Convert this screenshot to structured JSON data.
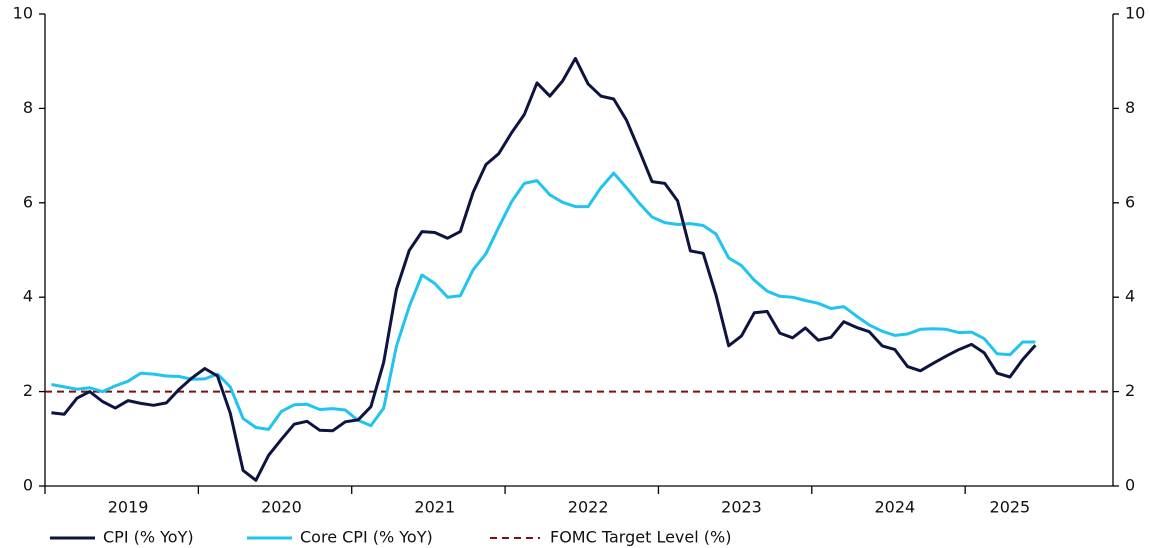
{
  "chart_data": {
    "type": "line",
    "categories": [
      null,
      null,
      null,
      null,
      null,
      null,
      "2019",
      null,
      null,
      null,
      null,
      null,
      null,
      null,
      null,
      null,
      null,
      null,
      "2020",
      null,
      null,
      null,
      null,
      null,
      null,
      null,
      null,
      null,
      null,
      null,
      "2021",
      null,
      null,
      null,
      null,
      null,
      null,
      null,
      null,
      null,
      null,
      null,
      "2022",
      null,
      null,
      null,
      null,
      null,
      null,
      null,
      null,
      null,
      null,
      null,
      "2023",
      null,
      null,
      null,
      null,
      null,
      null,
      null,
      null,
      null,
      null,
      null,
      "2024",
      null,
      null,
      null,
      null,
      null,
      null,
      null,
      null,
      "2025",
      null,
      null
    ],
    "series": [
      {
        "name": "CPI (% YoY)",
        "color": "#0d1440",
        "values": [
          1.55,
          1.52,
          1.86,
          2.0,
          1.79,
          1.65,
          1.81,
          1.75,
          1.71,
          1.76,
          2.05,
          2.29,
          2.49,
          2.33,
          1.54,
          0.33,
          0.12,
          0.65,
          0.99,
          1.31,
          1.37,
          1.18,
          1.17,
          1.36,
          1.4,
          1.68,
          2.62,
          4.16,
          4.99,
          5.39,
          5.37,
          5.25,
          5.39,
          6.22,
          6.81,
          7.04,
          7.48,
          7.87,
          8.54,
          8.26,
          8.58,
          9.06,
          8.52,
          8.26,
          8.2,
          7.75,
          7.11,
          6.45,
          6.41,
          6.04,
          4.98,
          4.93,
          4.05,
          2.97,
          3.18,
          3.67,
          3.7,
          3.24,
          3.14,
          3.35,
          3.09,
          3.15,
          3.48,
          3.36,
          3.27,
          2.97,
          2.89,
          2.53,
          2.44,
          2.6,
          2.75,
          2.89,
          3.0,
          2.82,
          2.39,
          2.31,
          2.68,
          2.98
        ]
      },
      {
        "name": "Core CPI (% YoY)",
        "color": "#20c4ef",
        "values": [
          2.15,
          2.1,
          2.05,
          2.08,
          2.0,
          2.12,
          2.22,
          2.39,
          2.37,
          2.33,
          2.32,
          2.26,
          2.27,
          2.37,
          2.1,
          1.43,
          1.24,
          1.2,
          1.58,
          1.72,
          1.73,
          1.62,
          1.64,
          1.61,
          1.39,
          1.28,
          1.65,
          2.96,
          3.8,
          4.47,
          4.29,
          4.0,
          4.03,
          4.58,
          4.92,
          5.48,
          6.02,
          6.41,
          6.47,
          6.17,
          6.01,
          5.92,
          5.92,
          6.32,
          6.63,
          6.32,
          5.99,
          5.7,
          5.58,
          5.54,
          5.56,
          5.52,
          5.34,
          4.83,
          4.67,
          4.36,
          4.13,
          4.02,
          4.0,
          3.93,
          3.87,
          3.76,
          3.8,
          3.6,
          3.41,
          3.28,
          3.19,
          3.22,
          3.32,
          3.33,
          3.32,
          3.25,
          3.26,
          3.12,
          2.8,
          2.78,
          3.05,
          3.05
        ]
      }
    ],
    "target": {
      "name": "FOMC Target Level (%)",
      "color": "#7b1010",
      "value": 2
    },
    "ylim": [
      0,
      10
    ],
    "yticks": [
      0,
      2,
      4,
      6,
      8,
      10
    ],
    "y2lim": [
      0,
      10
    ],
    "y2ticks": [
      0,
      2,
      4,
      6,
      8,
      10
    ],
    "grid": false
  }
}
